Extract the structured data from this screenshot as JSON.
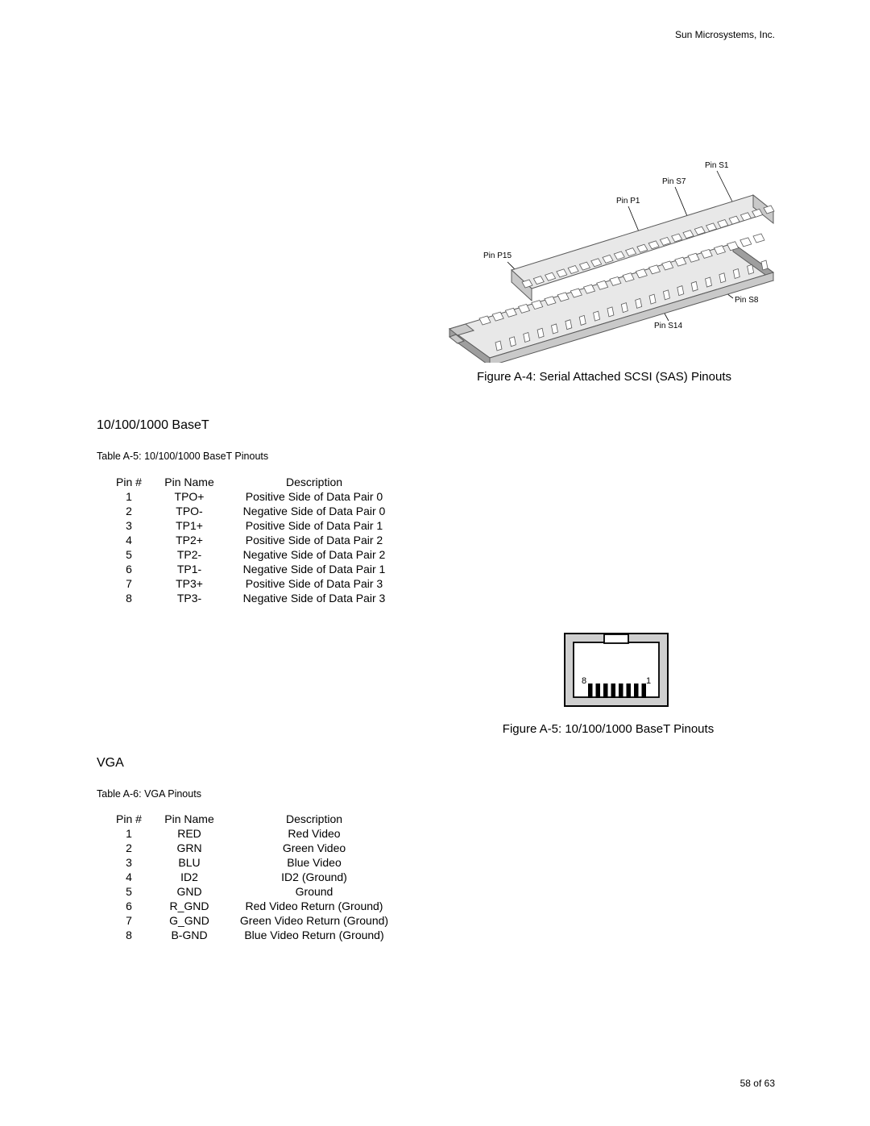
{
  "header": {
    "company": "Sun Microsystems, Inc."
  },
  "footer": {
    "page_no": "58 of 63"
  },
  "fig_sas": {
    "labels": {
      "p15": "Pin P15",
      "p1": "Pin P1",
      "s7": "Pin S7",
      "s1": "Pin S1",
      "s14": "Pin S14",
      "s8": "Pin S8"
    },
    "caption": "Figure A-4: Serial Attached SCSI (SAS) Pinouts",
    "colors": {
      "line": "#5a5a5a",
      "fill_light": "#e8e8e8",
      "fill_mid": "#c9c9c9",
      "fill_dark": "#9e9e9e"
    }
  },
  "section_baset": {
    "title": "10/100/1000 BaseT",
    "table_caption": "Table A-5: 10/100/1000 BaseT Pinouts",
    "columns": [
      "Pin #",
      "Pin Name",
      "Description"
    ],
    "rows": [
      [
        "1",
        "TPO+",
        "Positive Side of Data Pair 0"
      ],
      [
        "2",
        "TPO-",
        "Negative Side of Data Pair 0"
      ],
      [
        "3",
        "TP1+",
        "Positive Side of Data Pair 1"
      ],
      [
        "4",
        "TP2+",
        "Positive Side of Data Pair 2"
      ],
      [
        "5",
        "TP2-",
        "Negative Side of Data Pair 2"
      ],
      [
        "6",
        "TP1-",
        "Negative Side of Data Pair 1"
      ],
      [
        "7",
        "TP3+",
        "Positive Side of Data Pair 3"
      ],
      [
        "8",
        "TP3-",
        "Negative Side of Data Pair 3"
      ]
    ]
  },
  "fig_rj45": {
    "left_label": "8",
    "right_label": "1",
    "caption": "Figure A-5: 10/100/1000 BaseT Pinouts",
    "colors": {
      "outer": "#000000",
      "fill": "#cfcfcf",
      "inner_fill": "#ffffff"
    }
  },
  "section_vga": {
    "title": "VGA",
    "table_caption": "Table A-6: VGA Pinouts",
    "columns": [
      "Pin #",
      "Pin Name",
      "Description"
    ],
    "rows": [
      [
        "1",
        "RED",
        "Red Video"
      ],
      [
        "2",
        "GRN",
        "Green Video"
      ],
      [
        "3",
        "BLU",
        "Blue Video"
      ],
      [
        "4",
        "ID2",
        "ID2 (Ground)"
      ],
      [
        "5",
        "GND",
        "Ground"
      ],
      [
        "6",
        "R_GND",
        "Red Video Return (Ground)"
      ],
      [
        "7",
        "G_GND",
        "Green Video Return (Ground)"
      ],
      [
        "8",
        "B-GND",
        "Blue Video Return (Ground)"
      ]
    ]
  }
}
